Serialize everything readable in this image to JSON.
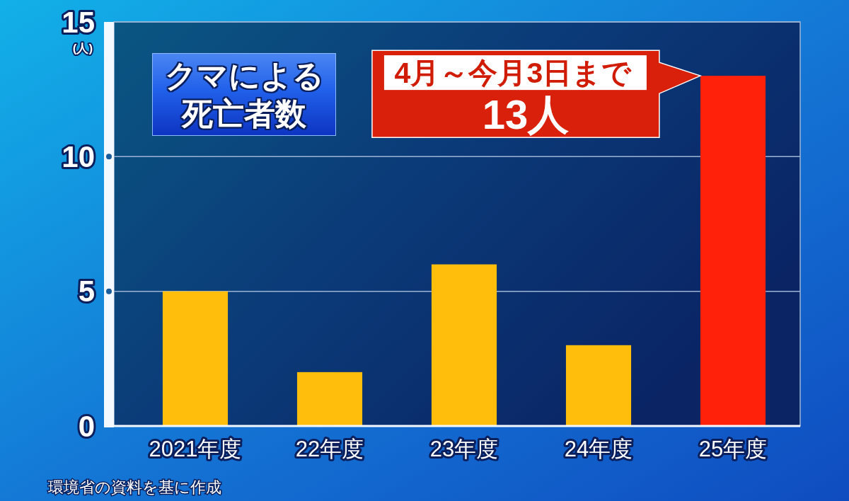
{
  "chart_data": {
    "type": "bar",
    "title": "クマによる死亡者数",
    "ylabel": "(人)",
    "categories": [
      "2021年度",
      "22年度",
      "23年度",
      "24年度",
      "25年度"
    ],
    "values": [
      5,
      2,
      6,
      3,
      13
    ],
    "colors": [
      "#ffbe0c",
      "#ffbe0c",
      "#ffbe0c",
      "#ffbe0c",
      "#ff2109"
    ],
    "ylim": [
      0,
      15
    ],
    "yticks": [
      0,
      5,
      10,
      15
    ],
    "grid": "y",
    "annotations": [
      {
        "text": "4月～今月3日まで\n13人",
        "x": "25年度",
        "y": 13
      },
      "環境省の資料を基に作成"
    ]
  }
}
